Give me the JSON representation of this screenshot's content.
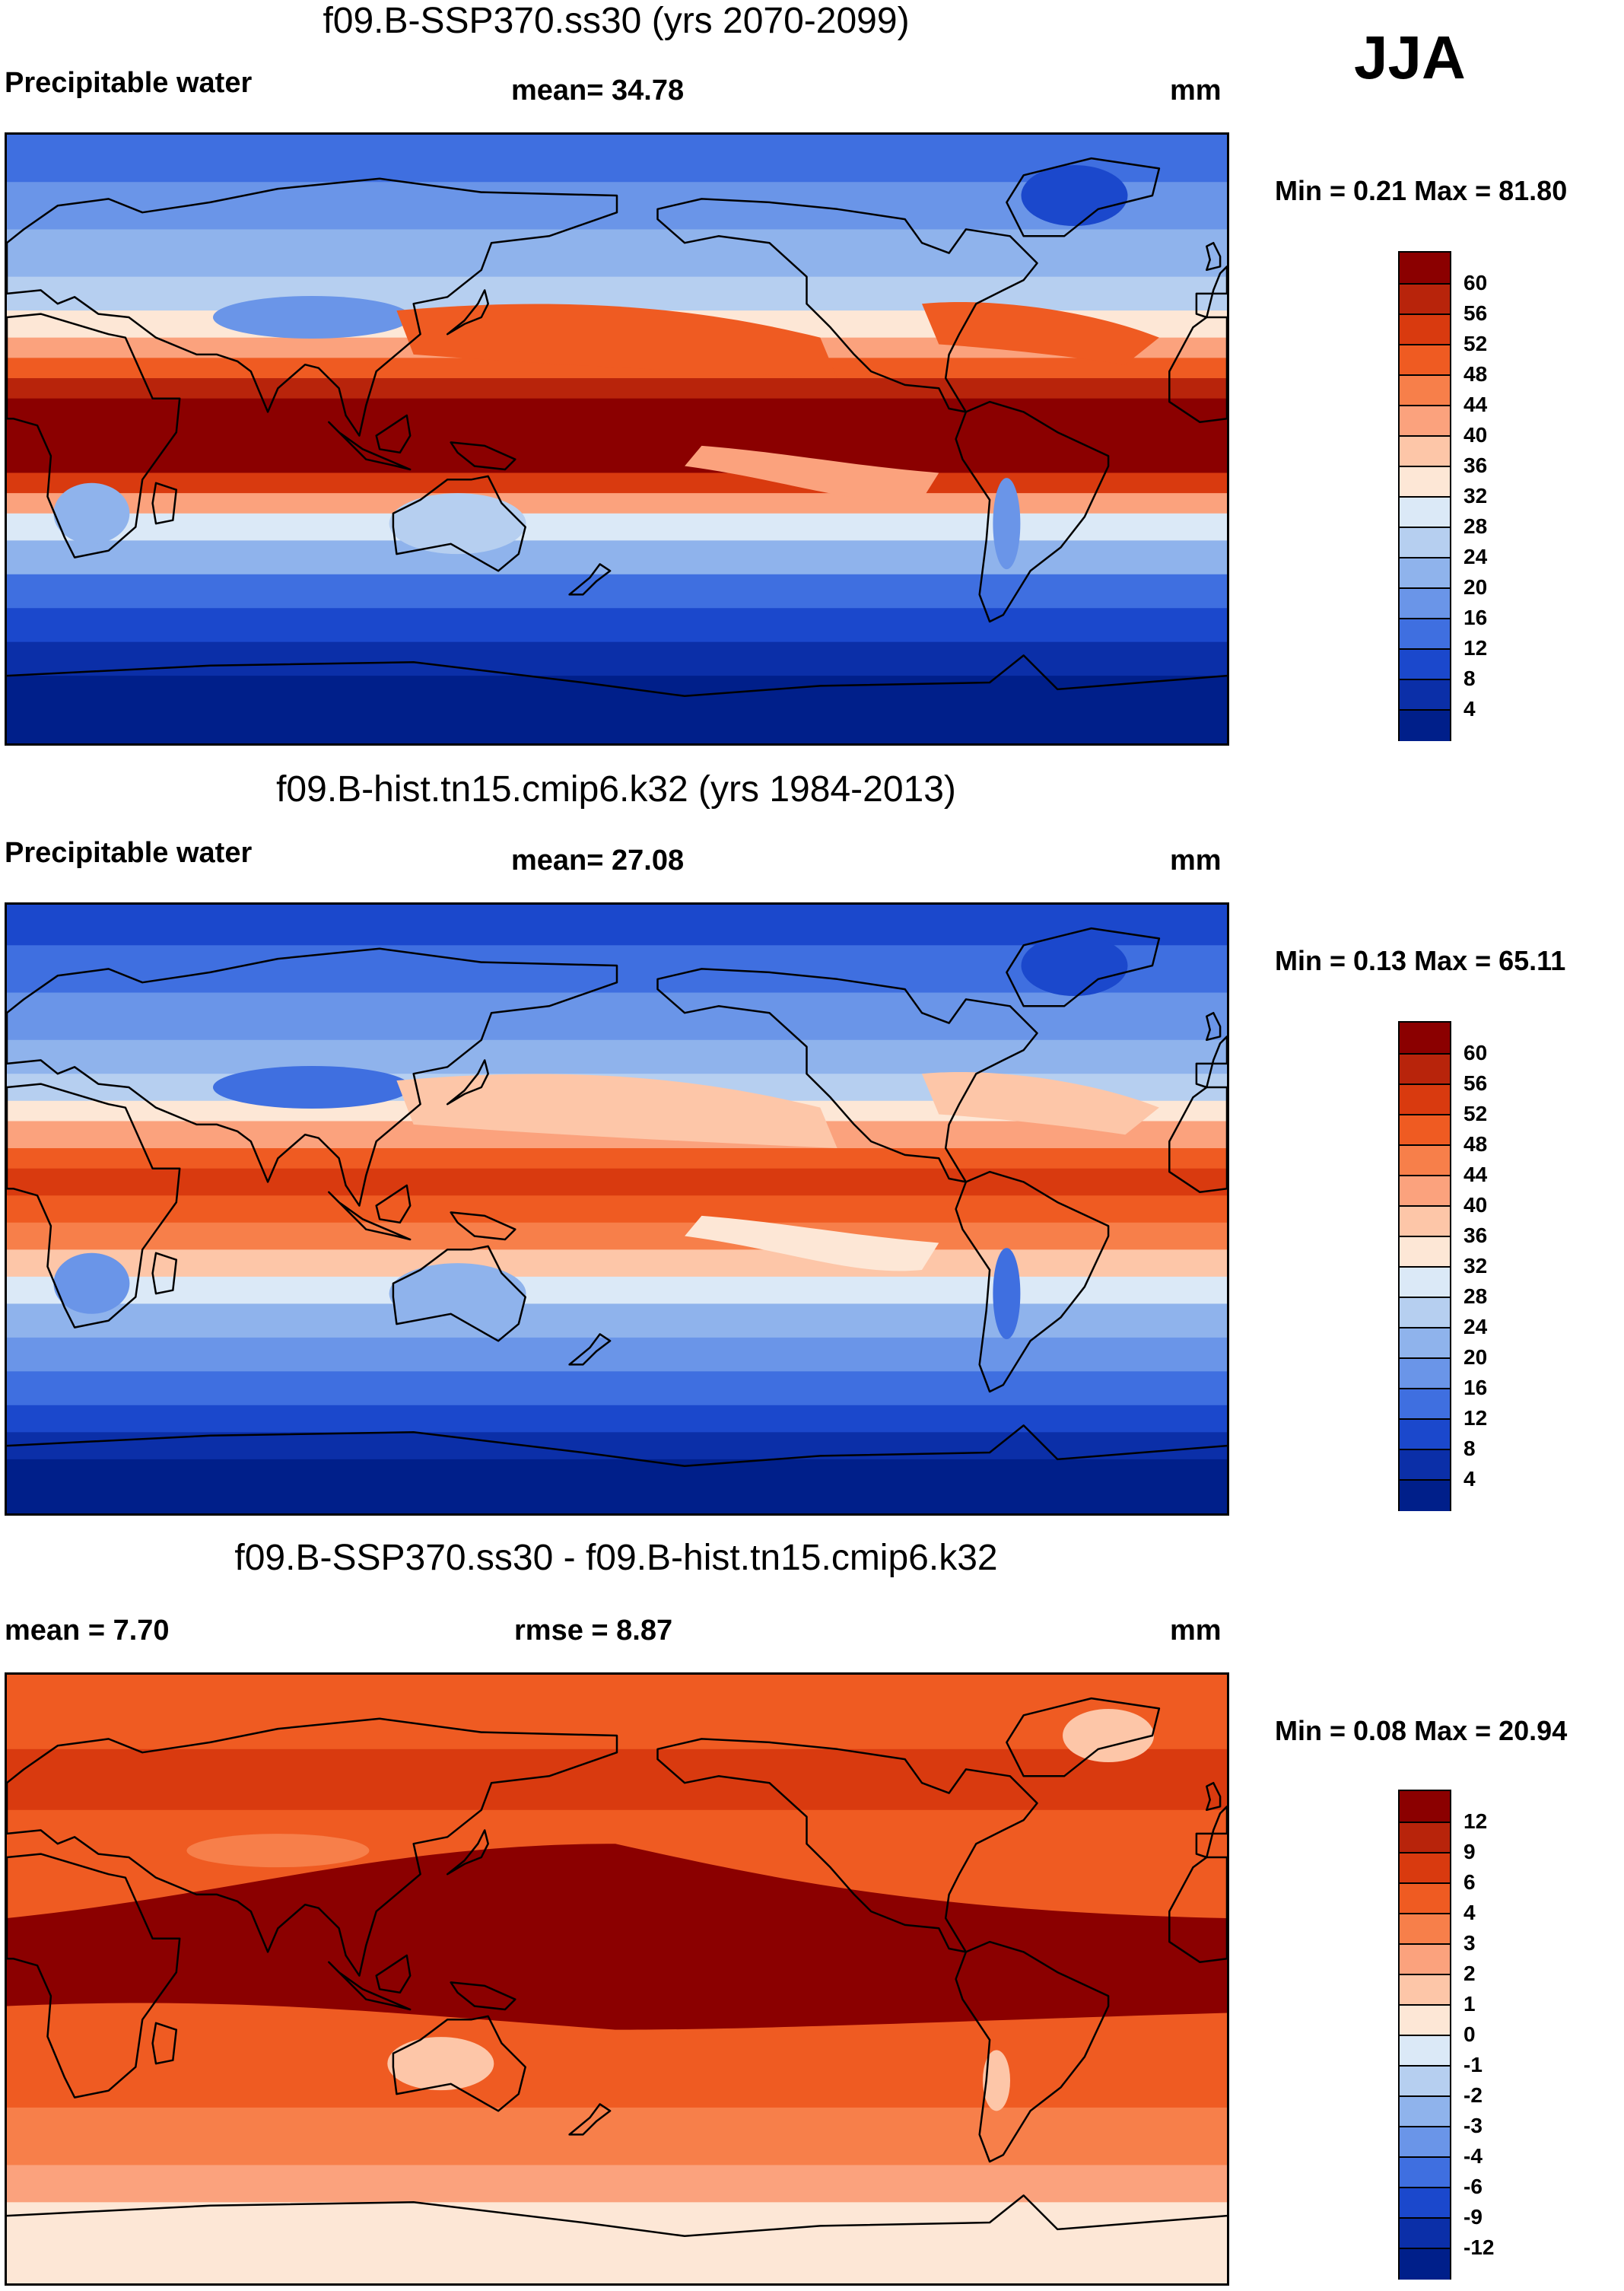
{
  "season": "JJA",
  "panels": [
    {
      "title": "f09.B-SSP370.ss30 (yrs 2070-2099)",
      "left_label": "Precipitable water",
      "mean_label": "mean=  34.78",
      "units": "mm",
      "minmax": "Min =   0.21 Max =  81.80",
      "levels": [
        "60",
        "56",
        "52",
        "48",
        "44",
        "40",
        "36",
        "32",
        "28",
        "24",
        "20",
        "16",
        "12",
        "8",
        "4"
      ],
      "colors": [
        "#8b0000",
        "#b8240b",
        "#d93a0f",
        "#ef5b22",
        "#f77f4a",
        "#fba27d",
        "#fdc6a8",
        "#fde7d6",
        "#dbe9f7",
        "#b6cff0",
        "#8fb3ec",
        "#6a95e8",
        "#3f6fe0",
        "#1b48cc",
        "#0b2fa8",
        "#001f8a"
      ],
      "map_style": "future"
    },
    {
      "title": "f09.B-hist.tn15.cmip6.k32 (yrs 1984-2013)",
      "left_label": "Precipitable water",
      "mean_label": "mean=  27.08",
      "units": "mm",
      "minmax": "Min =   0.13 Max =  65.11",
      "levels": [
        "60",
        "56",
        "52",
        "48",
        "44",
        "40",
        "36",
        "32",
        "28",
        "24",
        "20",
        "16",
        "12",
        "8",
        "4"
      ],
      "colors": [
        "#8b0000",
        "#b8240b",
        "#d93a0f",
        "#ef5b22",
        "#f77f4a",
        "#fba27d",
        "#fdc6a8",
        "#fde7d6",
        "#dbe9f7",
        "#b6cff0",
        "#8fb3ec",
        "#6a95e8",
        "#3f6fe0",
        "#1b48cc",
        "#0b2fa8",
        "#001f8a"
      ],
      "map_style": "hist"
    },
    {
      "title": "f09.B-SSP370.ss30 - f09.B-hist.tn15.cmip6.k32",
      "left_label": "mean =    7.70",
      "mean_label": "rmse =    8.87",
      "units": "mm",
      "minmax": "Min =   0.08 Max =  20.94",
      "levels": [
        "12",
        "9",
        "6",
        "4",
        "3",
        "2",
        "1",
        "0",
        "-1",
        "-2",
        "-3",
        "-4",
        "-6",
        "-9",
        "-12"
      ],
      "colors": [
        "#8b0000",
        "#b8240b",
        "#d93a0f",
        "#ef5b22",
        "#f77f4a",
        "#fba27d",
        "#fdc6a8",
        "#fde7d6",
        "#dbe9f7",
        "#b6cff0",
        "#8fb3ec",
        "#6a95e8",
        "#3f6fe0",
        "#1b48cc",
        "#0b2fa8",
        "#001f8a"
      ],
      "map_style": "diff"
    }
  ]
}
